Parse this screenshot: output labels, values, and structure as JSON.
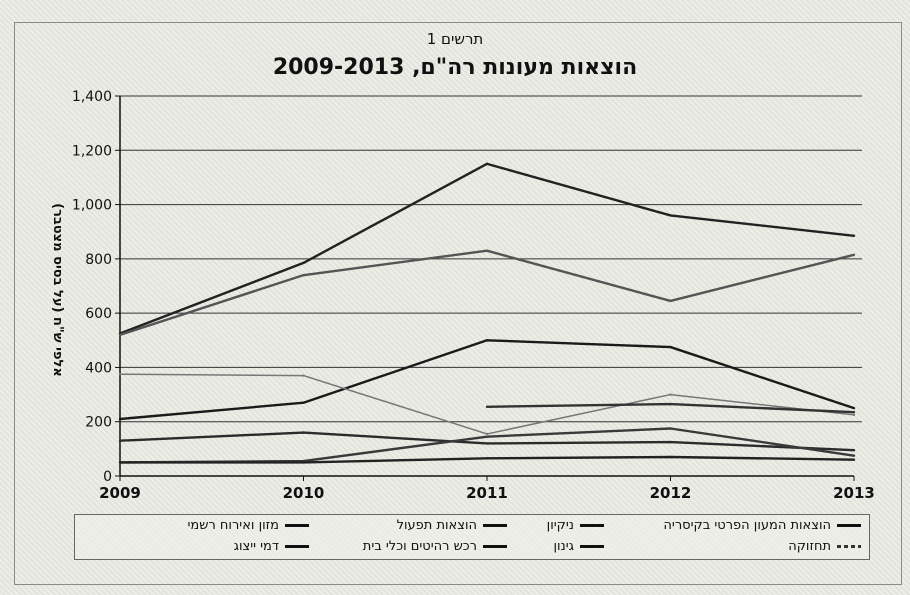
{
  "figure_label": "תרשים 1",
  "chart_data": {
    "type": "line",
    "title": "הוצאות מעונות רה\"ם, 2009-2013",
    "xlabel": "",
    "ylabel": "אלפי ש\"ח (על בסיס מצטבר)",
    "x": [
      "2009",
      "2010",
      "2011",
      "2012",
      "2013"
    ],
    "ylim": [
      0,
      1400
    ],
    "yticks": [
      "0",
      "200",
      "400",
      "600",
      "800",
      "1,000",
      "1,200",
      "1,400"
    ],
    "grid": true,
    "legend_position": "bottom",
    "series": [
      {
        "name": "הוצאות המעון הפרטי בקיסריה",
        "values": [
          525,
          785,
          1150,
          960,
          885
        ],
        "color": "#222222"
      },
      {
        "name": "ניקיון",
        "values": [
          520,
          740,
          830,
          645,
          815
        ],
        "color": "#555555"
      },
      {
        "name": "הוצאות תפעול",
        "values": [
          210,
          270,
          500,
          475,
          250
        ],
        "color": "#1a1a1a"
      },
      {
        "name": "מזון ואירוח רשמי",
        "values": [
          375,
          370,
          155,
          300,
          225
        ],
        "color": "#777777"
      },
      {
        "name": "תחזוקה",
        "values": [
          null,
          null,
          255,
          265,
          235
        ],
        "color": "#333333"
      },
      {
        "name": "גינון",
        "values": [
          130,
          160,
          120,
          125,
          95
        ],
        "color": "#2b2b2b"
      },
      {
        "name": "רכש רהיטים וכלי בית",
        "values": [
          50,
          55,
          145,
          175,
          75
        ],
        "color": "#3a3a3a"
      },
      {
        "name": "דמי ייצוג",
        "values": [
          50,
          50,
          65,
          70,
          60
        ],
        "color": "#222222"
      }
    ]
  },
  "legend": {
    "row1": [
      "הוצאות המעון הפרטי בקיסריה",
      "ניקיון",
      "הוצאות תפעול",
      "מזון ואירוח רשמי"
    ],
    "row2": [
      "תחזוקה",
      "גינון",
      "רכש רהיטים וכלי בית",
      "דמי ייצוג"
    ]
  }
}
